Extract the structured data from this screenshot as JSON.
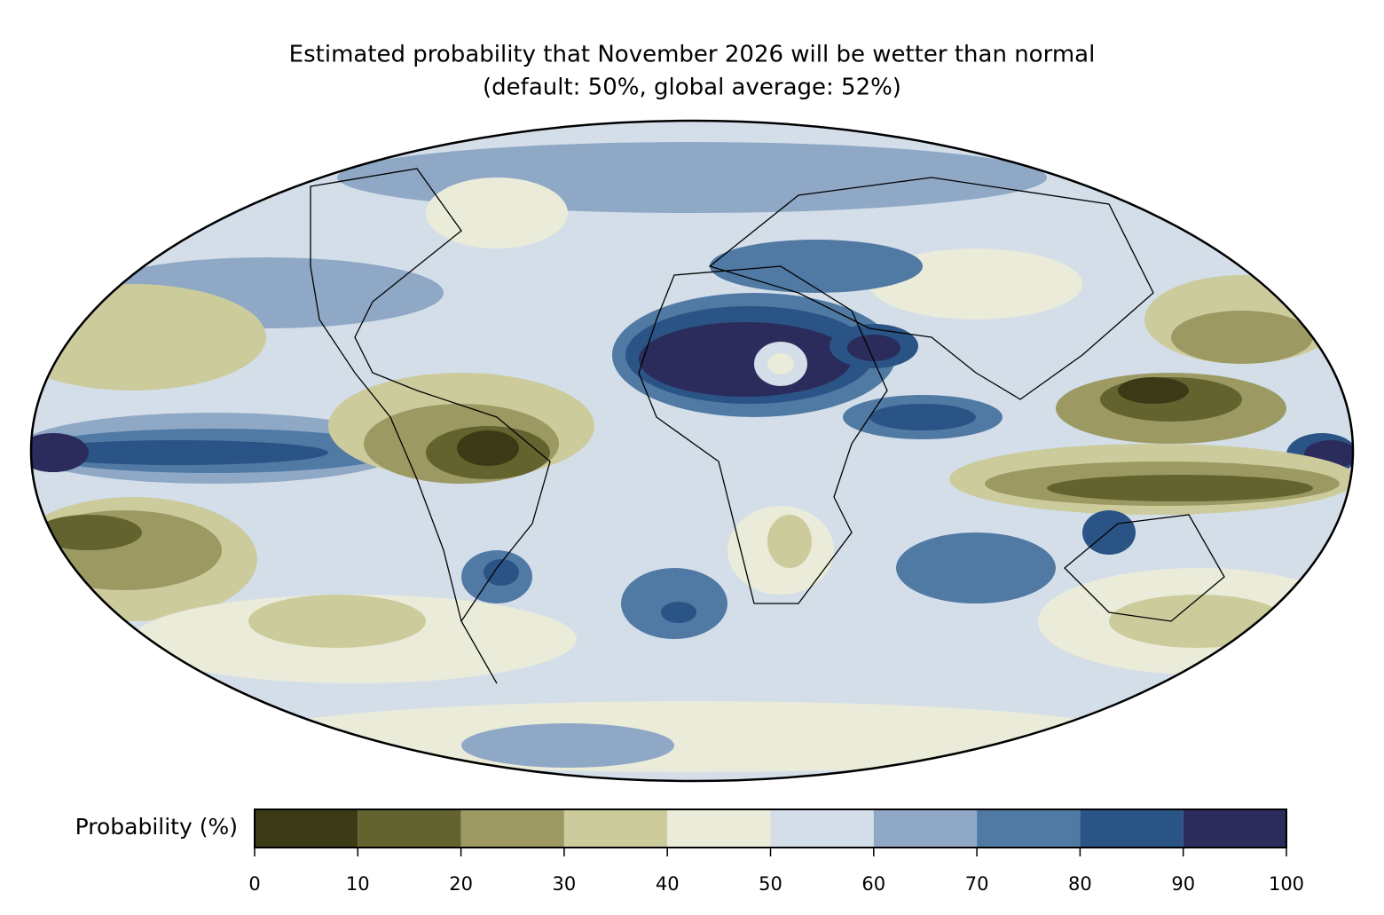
{
  "title": "Estimated probability that November 2026 will be wetter than normal",
  "subtitle": "(default: 50%, global average: 52%)",
  "colorbar": {
    "label": "Probability (%)",
    "lim": [
      0,
      100
    ],
    "ticks": [
      0,
      10,
      20,
      30,
      40,
      50,
      60,
      70,
      80,
      90,
      100
    ],
    "colors": [
      "#3a3a16",
      "#63632f",
      "#9c9a62",
      "#cccb9c",
      "#ebebd9",
      "#d3dee9",
      "#8fa8c6",
      "#5079a4",
      "#2b5486",
      "#2b2b5c"
    ]
  }
}
